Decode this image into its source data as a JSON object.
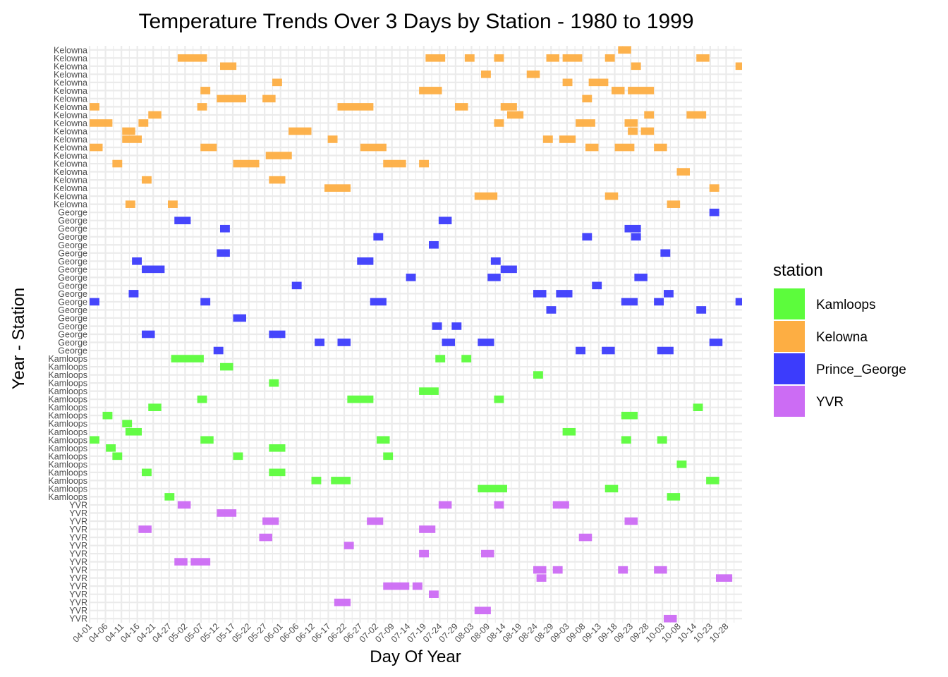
{
  "chart_data": {
    "type": "gantt",
    "title": "Temperature Trends Over 3 Days by Station - 1980 to 1999",
    "xlabel": "Day Of Year",
    "ylabel": "Year - Station",
    "legend": {
      "title": "station",
      "position": "right"
    },
    "colors": {
      "Kamloops": "#5cfc3c",
      "Kelowna": "#fdae43",
      "Prince_George": "#3c3cfc",
      "YVR": "#cc6cf4"
    },
    "x_ticks": [
      "04-01",
      "04-06",
      "04-11",
      "04-16",
      "04-21",
      "04-27",
      "05-02",
      "05-07",
      "05-12",
      "05-17",
      "05-22",
      "05-27",
      "06-01",
      "06-06",
      "06-12",
      "06-17",
      "06-22",
      "06-27",
      "07-02",
      "07-09",
      "07-14",
      "07-19",
      "07-24",
      "07-29",
      "08-03",
      "08-09",
      "08-14",
      "08-19",
      "08-24",
      "08-29",
      "09-03",
      "09-08",
      "09-13",
      "09-18",
      "09-23",
      "09-28",
      "10-03",
      "10-08",
      "10-14",
      "10-23",
      "10-28"
    ],
    "xlim": [
      0,
      200
    ],
    "stations": [
      {
        "name": "Kelowna",
        "label": "Kelowna",
        "rows": [
          [
            [
              162,
              166
            ]
          ],
          [
            [
              27,
              36
            ],
            [
              103,
              109
            ],
            [
              115,
              118
            ],
            [
              124,
              127
            ],
            [
              140,
              144
            ],
            [
              145,
              151
            ],
            [
              158,
              161
            ],
            [
              186,
              190
            ]
          ],
          [
            [
              40,
              45
            ],
            [
              166,
              169
            ],
            [
              198,
              200
            ]
          ],
          [
            [
              120,
              123
            ],
            [
              134,
              138
            ]
          ],
          [
            [
              56,
              59
            ],
            [
              145,
              148
            ],
            [
              153,
              156
            ],
            [
              156,
              159
            ]
          ],
          [
            [
              34,
              37
            ],
            [
              101,
              108
            ],
            [
              160,
              164
            ],
            [
              165,
              173
            ]
          ],
          [
            [
              39,
              48
            ],
            [
              53,
              57
            ],
            [
              151,
              154
            ]
          ],
          [
            [
              0,
              3
            ],
            [
              33,
              36
            ],
            [
              76,
              87
            ],
            [
              112,
              116
            ],
            [
              126,
              131
            ]
          ],
          [
            [
              18,
              22
            ],
            [
              128,
              133
            ],
            [
              170,
              173
            ],
            [
              183,
              189
            ]
          ],
          [
            [
              0,
              7
            ],
            [
              15,
              18
            ],
            [
              124,
              127
            ],
            [
              149,
              155
            ],
            [
              164,
              168
            ]
          ],
          [
            [
              10,
              14
            ],
            [
              61,
              68
            ],
            [
              165,
              168
            ],
            [
              169,
              173
            ]
          ],
          [
            [
              10,
              16
            ],
            [
              73,
              76
            ],
            [
              139,
              142
            ],
            [
              144,
              149
            ]
          ],
          [
            [
              0,
              4
            ],
            [
              34,
              39
            ],
            [
              83,
              91
            ],
            [
              152,
              156
            ],
            [
              161,
              167
            ],
            [
              173,
              177
            ]
          ],
          [
            [
              54,
              62
            ]
          ],
          [
            [
              7,
              10
            ],
            [
              44,
              52
            ],
            [
              90,
              97
            ],
            [
              101,
              104
            ]
          ],
          [
            [
              180,
              184
            ]
          ],
          [
            [
              16,
              19
            ],
            [
              55,
              60
            ]
          ],
          [
            [
              72,
              80
            ],
            [
              190,
              193
            ]
          ],
          [
            [
              118,
              125
            ],
            [
              158,
              162
            ]
          ],
          [
            [
              11,
              14
            ],
            [
              24,
              27
            ],
            [
              177,
              181
            ]
          ]
        ]
      },
      {
        "name": "Prince_George",
        "label": "George",
        "rows": [
          [
            [
              190,
              193
            ]
          ],
          [
            [
              26,
              31
            ],
            [
              107,
              111
            ]
          ],
          [
            [
              40,
              43
            ],
            [
              164,
              169
            ]
          ],
          [
            [
              87,
              90
            ],
            [
              151,
              154
            ],
            [
              166,
              169
            ]
          ],
          [
            [
              104,
              107
            ]
          ],
          [
            [
              39,
              43
            ],
            [
              175,
              178
            ]
          ],
          [
            [
              13,
              16
            ],
            [
              82,
              87
            ],
            [
              123,
              126
            ]
          ],
          [
            [
              16,
              23
            ],
            [
              126,
              131
            ]
          ],
          [
            [
              97,
              100
            ],
            [
              122,
              126
            ],
            [
              167,
              171
            ]
          ],
          [
            [
              62,
              65
            ],
            [
              154,
              157
            ]
          ],
          [
            [
              12,
              15
            ],
            [
              136,
              140
            ],
            [
              143,
              148
            ],
            [
              176,
              179
            ]
          ],
          [
            [
              0,
              3
            ],
            [
              34,
              37
            ],
            [
              86,
              91
            ],
            [
              163,
              168
            ],
            [
              173,
              176
            ],
            [
              198,
              200
            ]
          ],
          [
            [
              140,
              143
            ],
            [
              186,
              189
            ]
          ],
          [
            [
              44,
              48
            ]
          ],
          [
            [
              105,
              108
            ],
            [
              111,
              114
            ]
          ],
          [
            [
              16,
              20
            ],
            [
              55,
              60
            ]
          ],
          [
            [
              69,
              72
            ],
            [
              76,
              80
            ],
            [
              108,
              112
            ],
            [
              119,
              124
            ],
            [
              190,
              194
            ]
          ],
          [
            [
              38,
              41
            ],
            [
              149,
              152
            ],
            [
              157,
              161
            ],
            [
              174,
              179
            ]
          ]
        ]
      },
      {
        "name": "Kamloops",
        "label": "Kamloops",
        "rows": [
          [
            [
              25,
              35
            ],
            [
              106,
              109
            ],
            [
              114,
              117
            ]
          ],
          [
            [
              40,
              44
            ]
          ],
          [
            [
              136,
              139
            ]
          ],
          [
            [
              55,
              58
            ]
          ],
          [
            [
              101,
              107
            ]
          ],
          [
            [
              33,
              36
            ],
            [
              79,
              87
            ],
            [
              124,
              127
            ]
          ],
          [
            [
              18,
              22
            ],
            [
              185,
              188
            ]
          ],
          [
            [
              4,
              7
            ],
            [
              163,
              168
            ]
          ],
          [
            [
              10,
              13
            ]
          ],
          [
            [
              11,
              16
            ],
            [
              145,
              149
            ]
          ],
          [
            [
              0,
              3
            ],
            [
              34,
              38
            ],
            [
              88,
              92
            ],
            [
              163,
              166
            ],
            [
              174,
              177
            ]
          ],
          [
            [
              5,
              8
            ],
            [
              55,
              60
            ]
          ],
          [
            [
              7,
              10
            ],
            [
              44,
              47
            ],
            [
              90,
              93
            ]
          ],
          [
            [
              180,
              183
            ]
          ],
          [
            [
              16,
              19
            ],
            [
              55,
              60
            ]
          ],
          [
            [
              68,
              71
            ],
            [
              74,
              80
            ],
            [
              189,
              193
            ]
          ],
          [
            [
              119,
              128
            ],
            [
              158,
              162
            ]
          ],
          [
            [
              23,
              26
            ],
            [
              177,
              181
            ]
          ]
        ]
      },
      {
        "name": "YVR",
        "label": "YVR",
        "rows": [
          [
            [
              27,
              31
            ],
            [
              107,
              111
            ],
            [
              124,
              127
            ],
            [
              142,
              147
            ]
          ],
          [
            [
              39,
              45
            ]
          ],
          [
            [
              53,
              56
            ],
            [
              56,
              58
            ],
            [
              85,
              90
            ],
            [
              164,
              168
            ]
          ],
          [
            [
              15,
              19
            ],
            [
              101,
              106
            ]
          ],
          [
            [
              52,
              56
            ],
            [
              150,
              154
            ]
          ],
          [
            [
              78,
              81
            ]
          ],
          [
            [
              101,
              104
            ],
            [
              120,
              124
            ]
          ],
          [
            [
              26,
              30
            ],
            [
              31,
              37
            ]
          ],
          [
            [
              136,
              140
            ],
            [
              142,
              145
            ],
            [
              162,
              165
            ],
            [
              173,
              177
            ]
          ],
          [
            [
              137,
              140
            ],
            [
              192,
              197
            ]
          ],
          [
            [
              90,
              98
            ],
            [
              99,
              102
            ]
          ],
          [
            [
              104,
              107
            ]
          ],
          [
            [
              75,
              80
            ]
          ],
          [
            [
              118,
              123
            ]
          ],
          [
            [
              176,
              180
            ]
          ]
        ]
      }
    ]
  }
}
